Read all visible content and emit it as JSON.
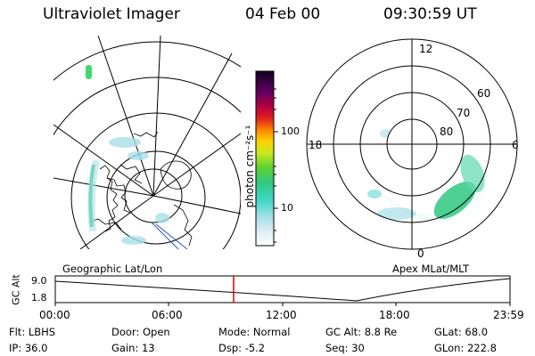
{
  "header": {
    "instrument": "Ultraviolet Imager",
    "date": "04 Feb 00",
    "time": "09:30:59 UT"
  },
  "colorbar": {
    "unit_label": "photon cm⁻²s⁻¹",
    "ticks": [
      "100",
      "10"
    ]
  },
  "left_panel": {
    "caption": "Geographic Lat/Lon"
  },
  "right_panel": {
    "caption": "Apex MLat/MLT",
    "mlt_labels": {
      "top": "12",
      "left": "18",
      "right": "6",
      "bottom": "0"
    },
    "lat_labels": [
      "60",
      "70",
      "80"
    ]
  },
  "timeline": {
    "ylabel": "GC Alt",
    "y_ticks": [
      "9.0",
      "1.8"
    ],
    "x_ticks": [
      "00:00",
      "06:00",
      "12:00",
      "18:00",
      "23:59"
    ],
    "marker_color": "#dd0000",
    "current_time": "09:30:59"
  },
  "info": {
    "row1": [
      {
        "label": "Flt:",
        "value": "LBHS"
      },
      {
        "label": "Door:",
        "value": "Open"
      },
      {
        "label": "Mode:",
        "value": "Normal"
      },
      {
        "label": "GC Alt:",
        "value": "8.8 Re"
      },
      {
        "label": "GLat:",
        "value": "68.0"
      }
    ],
    "row2": [
      {
        "label": "IP:",
        "value": "36.0"
      },
      {
        "label": "Gain:",
        "value": "13"
      },
      {
        "label": "Dsp:",
        "value": "-5.2"
      },
      {
        "label": "Seq:",
        "value": "30"
      },
      {
        "label": "GLon:",
        "value": "222.8"
      }
    ]
  }
}
